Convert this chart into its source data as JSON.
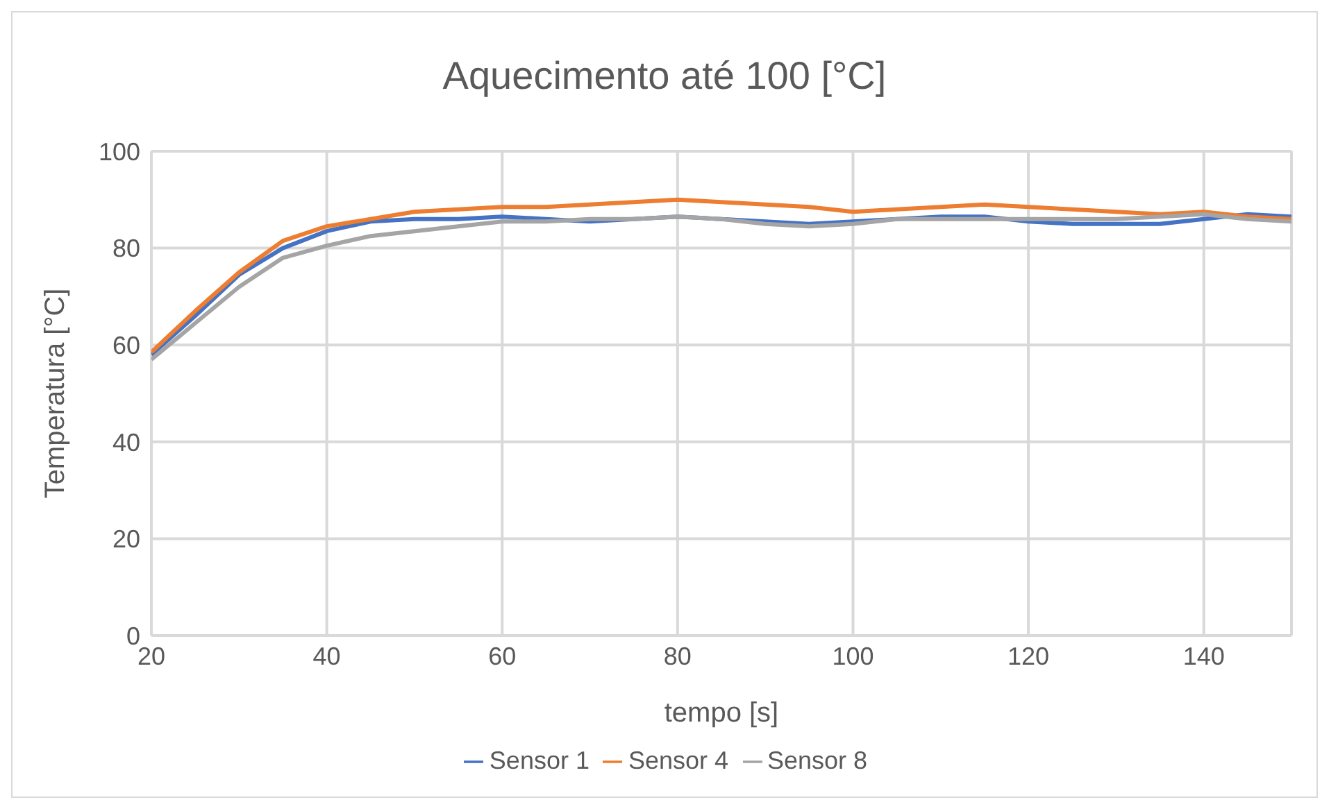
{
  "chart_data": {
    "type": "line",
    "title": "Aquecimento até 100 [°C]",
    "xlabel": "tempo [s]",
    "ylabel": "Temperatura [°C]",
    "x": [
      20,
      25,
      30,
      35,
      40,
      45,
      50,
      55,
      60,
      65,
      70,
      75,
      80,
      85,
      90,
      95,
      100,
      105,
      110,
      115,
      120,
      125,
      130,
      135,
      140,
      145,
      150
    ],
    "series": [
      {
        "name": "Sensor 1",
        "color": "#4472c4",
        "values": [
          58,
          66,
          74.5,
          80,
          83.5,
          85.5,
          86,
          86,
          86.5,
          86,
          85.5,
          86,
          86.5,
          86,
          85.5,
          85,
          85.5,
          86,
          86.5,
          86.5,
          85.5,
          85,
          85,
          85,
          86,
          87,
          86.5
        ]
      },
      {
        "name": "Sensor 4",
        "color": "#ed7d31",
        "values": [
          58.5,
          67,
          75,
          81.5,
          84.5,
          86,
          87.5,
          88,
          88.5,
          88.5,
          89,
          89.5,
          90,
          89.5,
          89,
          88.5,
          87.5,
          88,
          88.5,
          89,
          88.5,
          88,
          87.5,
          87,
          87.5,
          86.5,
          86
        ]
      },
      {
        "name": "Sensor 8",
        "color": "#a5a5a5",
        "values": [
          57,
          64.5,
          72,
          78,
          80.5,
          82.5,
          83.5,
          84.5,
          85.5,
          85.5,
          86,
          86,
          86.5,
          86,
          85,
          84.5,
          85,
          86,
          86,
          86,
          86,
          86,
          86,
          86.5,
          87,
          86,
          85.5
        ]
      }
    ],
    "xlim": [
      20,
      150
    ],
    "xticks": [
      20,
      40,
      60,
      80,
      100,
      120,
      140
    ],
    "ylim": [
      0,
      100
    ],
    "yticks": [
      0,
      20,
      40,
      60,
      80,
      100
    ],
    "grid": true,
    "legend": "bottom",
    "marker": "none",
    "line_style": "solid"
  }
}
